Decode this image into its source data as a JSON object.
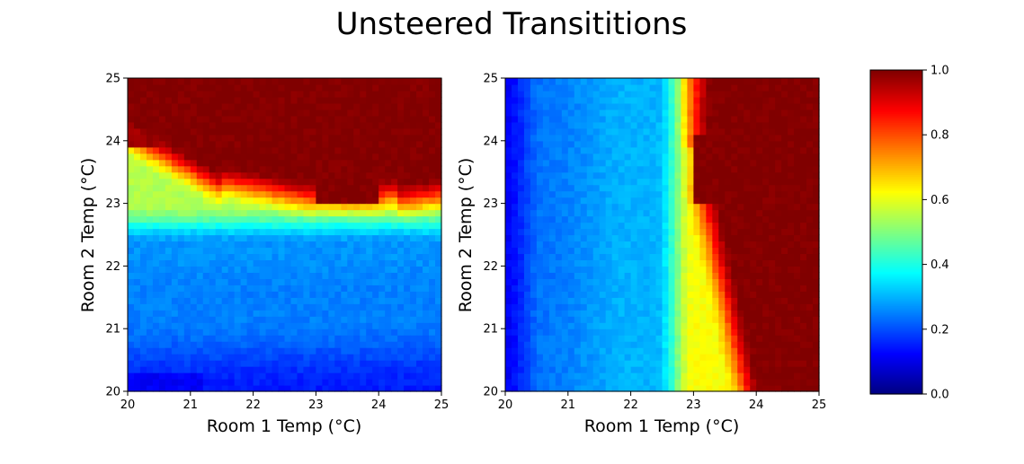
{
  "title": "Unsteered Transititions",
  "chart_data": [
    {
      "type": "heatmap",
      "name": "left-heatmap",
      "xlabel": "Room 1 Temp (°C)",
      "ylabel": "Room 2 Temp (°C)",
      "xlim": [
        20,
        25
      ],
      "ylim": [
        20,
        25
      ],
      "xticks": [
        "20",
        "21",
        "22",
        "23",
        "24",
        "25"
      ],
      "yticks": [
        "20",
        "21",
        "22",
        "23",
        "24",
        "25"
      ],
      "colormap": "jet",
      "grid_size": 50,
      "description_of_values": "value depends mainly on Room 2 temp: ~0.15 near 20, ~0.25 up to 22.3, rising through 0.4-0.7 near 22.5-23, ~1.0 above ~23.5 (upper region fully 1.0 for Room 1 temp 23-24 above 23)"
    },
    {
      "type": "heatmap",
      "name": "right-heatmap",
      "xlabel": "Room 1 Temp (°C)",
      "ylabel": "Room 2 Temp (°C)",
      "xlim": [
        20,
        25
      ],
      "ylim": [
        20,
        25
      ],
      "xticks": [
        "20",
        "21",
        "22",
        "23",
        "24",
        "25"
      ],
      "yticks": [
        "20",
        "21",
        "22",
        "23",
        "24",
        "25"
      ],
      "colormap": "jet",
      "grid_size": 50,
      "description_of_values": "value depends mainly on Room 1 temp: ~0.15 near 20, ~0.3 up to 22.4, rising through 0.4-0.8 near 22.5-23, ~1.0 above ~23.8"
    }
  ],
  "colorbar": {
    "min": 0.0,
    "max": 1.0,
    "ticks": [
      "0.0",
      "0.2",
      "0.4",
      "0.6",
      "0.8",
      "1.0"
    ],
    "colormap": "jet"
  }
}
